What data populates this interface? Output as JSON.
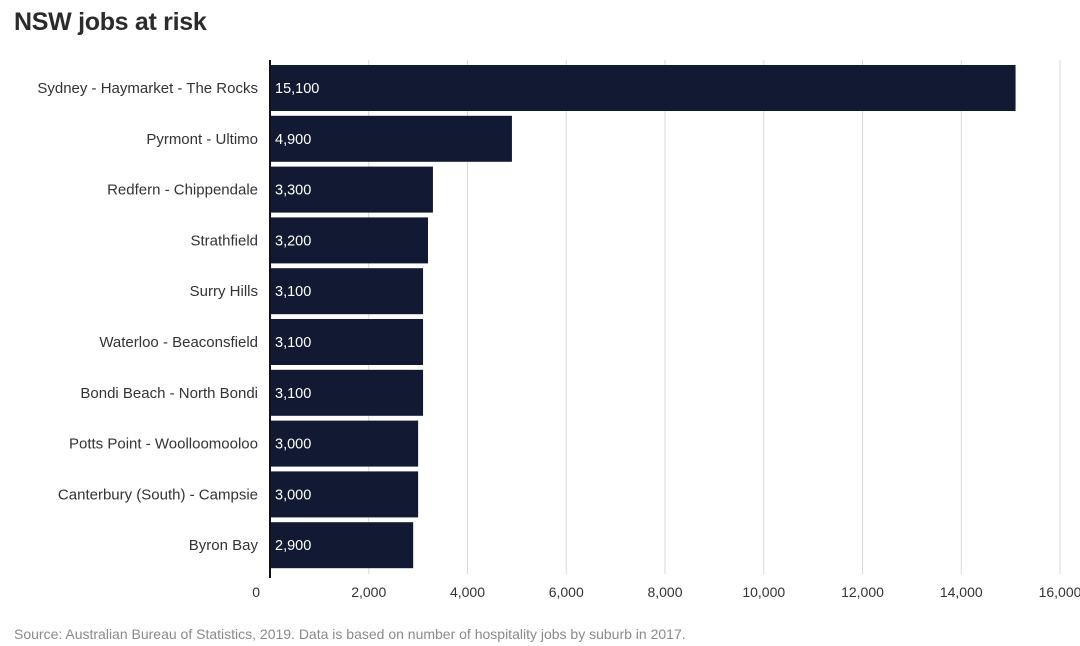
{
  "title": "NSW jobs at risk",
  "source": "Source: Australian Bureau of Statistics, 2019. Data is based on number of hospitality jobs by suburb in 2017.",
  "colors": {
    "bar": "#121a33",
    "bar_label": "#ffffff",
    "grid": "#d9d9d9",
    "axis": "#111111",
    "text": "#333333"
  },
  "chart_data": {
    "type": "bar",
    "orientation": "horizontal",
    "title": "NSW jobs at risk",
    "xlabel": "",
    "ylabel": "",
    "grid": true,
    "xlim": [
      0,
      16000
    ],
    "xticks": [
      0,
      2000,
      4000,
      6000,
      8000,
      10000,
      12000,
      14000,
      16000
    ],
    "xtick_labels": [
      "0",
      "2,000",
      "4,000",
      "6,000",
      "8,000",
      "10,000",
      "12,000",
      "14,000",
      "16,000"
    ],
    "categories": [
      "Sydney - Haymarket - The Rocks",
      "Pyrmont - Ultimo",
      "Redfern - Chippendale",
      "Strathfield",
      "Surry Hills",
      "Waterloo - Beaconsfield",
      "Bondi Beach - North Bondi",
      "Potts Point - Woolloomooloo",
      "Canterbury (South) - Campsie",
      "Byron Bay"
    ],
    "values": [
      15100,
      4900,
      3300,
      3200,
      3100,
      3100,
      3100,
      3000,
      3000,
      2900
    ],
    "value_labels": [
      "15,100",
      "4,900",
      "3,300",
      "3,200",
      "3,100",
      "3,100",
      "3,100",
      "3,000",
      "3,000",
      "2,900"
    ]
  }
}
